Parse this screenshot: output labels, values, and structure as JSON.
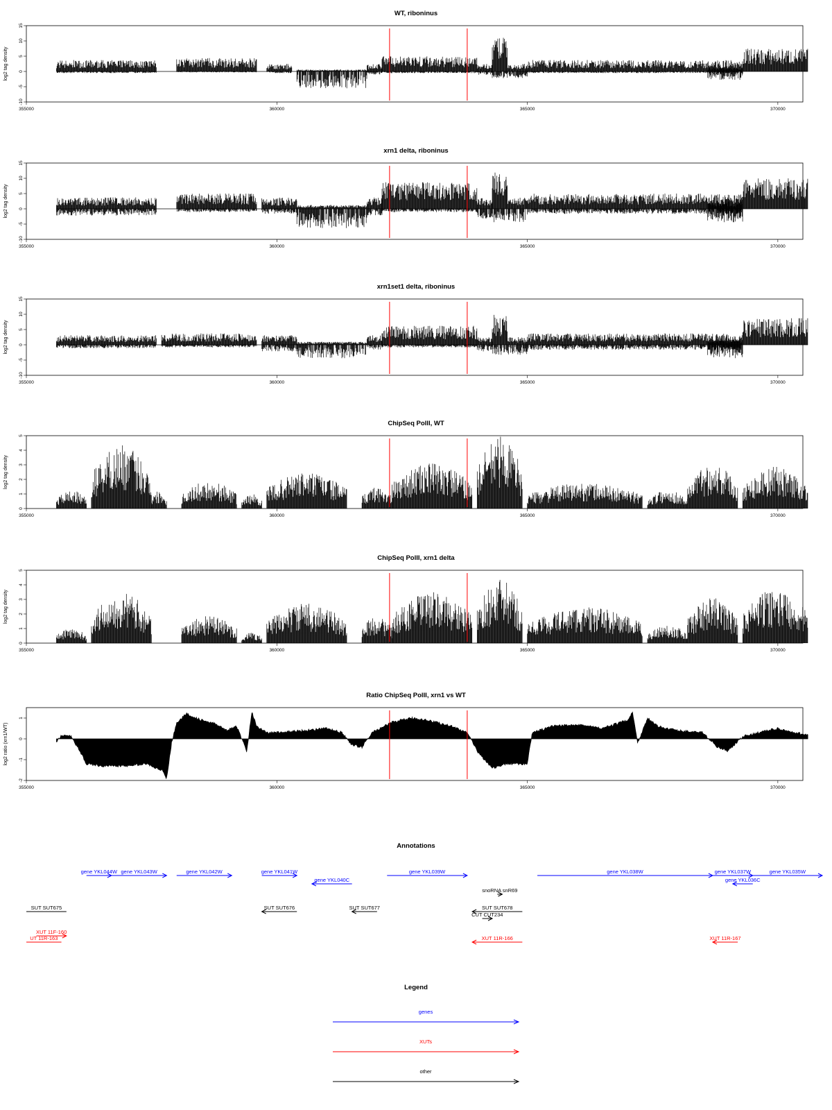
{
  "colors": {
    "gene": "#0000ff",
    "xut": "#ff0000",
    "other": "#000000",
    "marker": "#ff0000",
    "signal": "#000000"
  },
  "chart_data": [
    {
      "type": "area",
      "title": "WT, riboninus",
      "ylabel": "log2 tag density",
      "xlim": [
        355000,
        370500
      ],
      "ylim": [
        -10,
        15
      ],
      "yticks": [
        "15",
        "10",
        "5",
        "0",
        "-5",
        "-10"
      ],
      "xticks": [
        "355000",
        "360000",
        "365000",
        "370000"
      ],
      "markers_x": [
        362250,
        363800
      ],
      "segments": [
        {
          "x": [
            355600,
            357600
          ],
          "up": 3,
          "down": 0.5
        },
        {
          "x": [
            358000,
            359600
          ],
          "up": 3.5,
          "down": 0.3
        },
        {
          "x": [
            359800,
            360300
          ],
          "up": 2,
          "down": 0.5
        },
        {
          "x": [
            360400,
            361800
          ],
          "up": 0.5,
          "down": 5
        },
        {
          "x": [
            361800,
            362100
          ],
          "up": 2,
          "down": 1
        },
        {
          "x": [
            362100,
            364000
          ],
          "up": 4,
          "down": 0.5
        },
        {
          "x": [
            364000,
            364300
          ],
          "up": 2,
          "down": 1
        },
        {
          "x": [
            364300,
            364600
          ],
          "up": 9,
          "down": 2
        },
        {
          "x": [
            364600,
            365000
          ],
          "up": 2,
          "down": 2
        },
        {
          "x": [
            365000,
            369300
          ],
          "up": 3,
          "down": 0.5
        },
        {
          "x": [
            368600,
            369300
          ],
          "up": 1,
          "down": 2.5
        },
        {
          "x": [
            369300,
            370600
          ],
          "up": 6,
          "down": 0
        }
      ]
    },
    {
      "type": "area",
      "title": "xrn1 delta, riboninus",
      "ylabel": "log2 tag density",
      "xlim": [
        355000,
        370500
      ],
      "ylim": [
        -10,
        15
      ],
      "yticks": [
        "15",
        "10",
        "5",
        "0",
        "-5",
        "-10"
      ],
      "xticks": [
        "355000",
        "360000",
        "365000",
        "370000"
      ],
      "markers_x": [
        362250,
        363800
      ],
      "segments": [
        {
          "x": [
            355600,
            357600
          ],
          "up": 3,
          "down": 2
        },
        {
          "x": [
            358000,
            359600
          ],
          "up": 4,
          "down": 1
        },
        {
          "x": [
            359700,
            360400
          ],
          "up": 3,
          "down": 1.5
        },
        {
          "x": [
            360400,
            361800
          ],
          "up": 1,
          "down": 6
        },
        {
          "x": [
            361800,
            362100
          ],
          "up": 3,
          "down": 2
        },
        {
          "x": [
            362100,
            364000
          ],
          "up": 7,
          "down": 1
        },
        {
          "x": [
            364000,
            364300
          ],
          "up": 3,
          "down": 3
        },
        {
          "x": [
            364300,
            364600
          ],
          "up": 10,
          "down": 4
        },
        {
          "x": [
            364600,
            365000
          ],
          "up": 3,
          "down": 4
        },
        {
          "x": [
            365000,
            369300
          ],
          "up": 4,
          "down": 1.5
        },
        {
          "x": [
            368600,
            369300
          ],
          "up": 2,
          "down": 4
        },
        {
          "x": [
            369300,
            370600
          ],
          "up": 8,
          "down": 0
        }
      ]
    },
    {
      "type": "area",
      "title": "xrn1set1 delta, riboninus",
      "ylabel": "log2 tag density",
      "xlim": [
        355000,
        370500
      ],
      "ylim": [
        -10,
        15
      ],
      "yticks": [
        "15",
        "10",
        "5",
        "0",
        "-5",
        "-10"
      ],
      "xticks": [
        "355000",
        "360000",
        "365000",
        "370000"
      ],
      "markers_x": [
        362250,
        363800
      ],
      "segments": [
        {
          "x": [
            355600,
            357600
          ],
          "up": 2.5,
          "down": 1
        },
        {
          "x": [
            357700,
            359600
          ],
          "up": 3,
          "down": 0.8
        },
        {
          "x": [
            359700,
            360400
          ],
          "up": 2.5,
          "down": 2
        },
        {
          "x": [
            360400,
            361800
          ],
          "up": 0.8,
          "down": 4
        },
        {
          "x": [
            361800,
            362100
          ],
          "up": 2.5,
          "down": 1.5
        },
        {
          "x": [
            362100,
            364000
          ],
          "up": 5,
          "down": 0.8
        },
        {
          "x": [
            364000,
            364300
          ],
          "up": 2,
          "down": 2
        },
        {
          "x": [
            364300,
            364600
          ],
          "up": 8,
          "down": 3
        },
        {
          "x": [
            364600,
            365000
          ],
          "up": 2,
          "down": 3
        },
        {
          "x": [
            365000,
            369300
          ],
          "up": 3,
          "down": 1.5
        },
        {
          "x": [
            368600,
            369300
          ],
          "up": 1.5,
          "down": 4
        },
        {
          "x": [
            369300,
            370600
          ],
          "up": 7,
          "down": 0
        }
      ]
    },
    {
      "type": "area",
      "title": "ChipSeq PolII, WT",
      "ylabel": "log2 tag density",
      "xlim": [
        355000,
        370500
      ],
      "ylim": [
        0,
        5
      ],
      "yticks": [
        "5",
        "4",
        "3",
        "2",
        "1",
        "0"
      ],
      "xticks": [
        "355000",
        "360000",
        "365000",
        "370000"
      ],
      "markers_x": [
        362250,
        363800
      ],
      "segments": [
        {
          "x": [
            355600,
            356200
          ],
          "up": 1,
          "down": 0
        },
        {
          "x": [
            356300,
            357500
          ],
          "up": 3.5,
          "down": 0
        },
        {
          "x": [
            357500,
            357800
          ],
          "up": 1,
          "down": 0
        },
        {
          "x": [
            358100,
            359200
          ],
          "up": 1.5,
          "down": 0
        },
        {
          "x": [
            359300,
            359700
          ],
          "up": 0.8,
          "down": 0
        },
        {
          "x": [
            359800,
            361400
          ],
          "up": 2,
          "down": 0
        },
        {
          "x": [
            361700,
            362300
          ],
          "up": 1.2,
          "down": 0
        },
        {
          "x": [
            362300,
            363900
          ],
          "up": 2.5,
          "down": 0
        },
        {
          "x": [
            364000,
            364900
          ],
          "up": 4,
          "down": 0
        },
        {
          "x": [
            365000,
            367300
          ],
          "up": 1.4,
          "down": 0
        },
        {
          "x": [
            367400,
            368200
          ],
          "up": 1,
          "down": 0
        },
        {
          "x": [
            368200,
            369200
          ],
          "up": 2.5,
          "down": 0
        },
        {
          "x": [
            369300,
            370600
          ],
          "up": 2.3,
          "down": 0
        }
      ]
    },
    {
      "type": "area",
      "title": "ChipSeq PolII, xrn1 delta",
      "ylabel": "log2 tag density",
      "xlim": [
        355000,
        370500
      ],
      "ylim": [
        0,
        5
      ],
      "yticks": [
        "5",
        "4",
        "3",
        "2",
        "1",
        "0"
      ],
      "xticks": [
        "355000",
        "360000",
        "365000",
        "370000"
      ],
      "markers_x": [
        362250,
        363800
      ],
      "segments": [
        {
          "x": [
            355600,
            356200
          ],
          "up": 0.8,
          "down": 0
        },
        {
          "x": [
            356300,
            357500
          ],
          "up": 2.8,
          "down": 0
        },
        {
          "x": [
            358100,
            359200
          ],
          "up": 1.5,
          "down": 0
        },
        {
          "x": [
            359300,
            359700
          ],
          "up": 0.6,
          "down": 0
        },
        {
          "x": [
            359800,
            361400
          ],
          "up": 2.2,
          "down": 0
        },
        {
          "x": [
            361700,
            362300
          ],
          "up": 1.5,
          "down": 0
        },
        {
          "x": [
            362300,
            363900
          ],
          "up": 2.8,
          "down": 0
        },
        {
          "x": [
            364000,
            364900
          ],
          "up": 3.5,
          "down": 0
        },
        {
          "x": [
            365000,
            367300
          ],
          "up": 2,
          "down": 0
        },
        {
          "x": [
            367400,
            368200
          ],
          "up": 1,
          "down": 0
        },
        {
          "x": [
            368200,
            369200
          ],
          "up": 2.5,
          "down": 0
        },
        {
          "x": [
            369300,
            370600
          ],
          "up": 3,
          "down": 0
        }
      ]
    },
    {
      "type": "area",
      "title": "Ratio ChipSeq PolII, xrn1 vs WT",
      "ylabel": "log2 ratio (xrn1/WT)",
      "xlim": [
        355000,
        370500
      ],
      "ylim": [
        -2,
        1.5
      ],
      "yticks": [
        "1",
        "0",
        "-1",
        "-2"
      ],
      "xticks": [
        "355000",
        "360000",
        "365000",
        "370000"
      ],
      "markers_x": [
        362250,
        363800
      ],
      "curve": [
        [
          355600,
          -0.2
        ],
        [
          355700,
          0.2
        ],
        [
          355900,
          0.1
        ],
        [
          356000,
          -0.3
        ],
        [
          356200,
          -1.2
        ],
        [
          356500,
          -1.3
        ],
        [
          357000,
          -1.3
        ],
        [
          357400,
          -1.2
        ],
        [
          357700,
          -1.5
        ],
        [
          357800,
          -1.9
        ],
        [
          357900,
          -0.2
        ],
        [
          358000,
          0.8
        ],
        [
          358200,
          1.2
        ],
        [
          358500,
          0.9
        ],
        [
          358800,
          0.7
        ],
        [
          359000,
          0.4
        ],
        [
          359200,
          0.6
        ],
        [
          359400,
          -0.6
        ],
        [
          359500,
          1.3
        ],
        [
          359600,
          0.6
        ],
        [
          359800,
          0.3
        ],
        [
          360000,
          0.3
        ],
        [
          360500,
          0.4
        ],
        [
          361000,
          0.5
        ],
        [
          361300,
          0.3
        ],
        [
          361500,
          -0.3
        ],
        [
          361700,
          -0.4
        ],
        [
          361900,
          0.3
        ],
        [
          362300,
          0.8
        ],
        [
          362700,
          1
        ],
        [
          363000,
          0.9
        ],
        [
          363500,
          0.6
        ],
        [
          363800,
          0.3
        ],
        [
          364000,
          -0.6
        ],
        [
          364300,
          -1.4
        ],
        [
          364600,
          -1.2
        ],
        [
          365000,
          -1.2
        ],
        [
          365100,
          0.3
        ],
        [
          365500,
          0.6
        ],
        [
          366000,
          0.7
        ],
        [
          366500,
          0.5
        ],
        [
          367000,
          0.9
        ],
        [
          367100,
          1.3
        ],
        [
          367200,
          -0.2
        ],
        [
          367400,
          1
        ],
        [
          367600,
          0.6
        ],
        [
          368000,
          0.4
        ],
        [
          368500,
          0.3
        ],
        [
          368800,
          -0.4
        ],
        [
          369000,
          -0.6
        ],
        [
          369300,
          0.1
        ],
        [
          369600,
          0.3
        ],
        [
          370000,
          0.5
        ],
        [
          370300,
          0.3
        ],
        [
          370600,
          0.2
        ]
      ]
    }
  ],
  "annotations": {
    "title": "Annotations",
    "xlim": [
      355000,
      370500
    ],
    "items": [
      {
        "label": "gene YKL044W",
        "type": "gene",
        "x1": 356200,
        "x2": 356700,
        "dir": "right",
        "row": 0
      },
      {
        "label": "gene YKL043W",
        "type": "gene",
        "x1": 356700,
        "x2": 357800,
        "dir": "right",
        "row": 0
      },
      {
        "label": "gene YKL042W",
        "type": "gene",
        "x1": 358000,
        "x2": 359100,
        "dir": "right",
        "row": 0
      },
      {
        "label": "gene YKL041W",
        "type": "gene",
        "x1": 359700,
        "x2": 360400,
        "dir": "right",
        "row": 0
      },
      {
        "label": "gene YKL040C",
        "type": "gene",
        "x1": 360700,
        "x2": 361500,
        "dir": "left",
        "row": 1
      },
      {
        "label": "gene YKL039W",
        "type": "gene",
        "x1": 362200,
        "x2": 363800,
        "dir": "right",
        "row": 0
      },
      {
        "label": "gene YKL038W",
        "type": "gene",
        "x1": 365200,
        "x2": 368700,
        "dir": "right",
        "row": 0
      },
      {
        "label": "gene YKL037W",
        "type": "gene",
        "x1": 368700,
        "x2": 369500,
        "dir": "right",
        "row": 0
      },
      {
        "label": "gene YKL036C",
        "type": "gene",
        "x1": 369100,
        "x2": 369500,
        "dir": "left",
        "row": 1
      },
      {
        "label": "gene YKL035W",
        "type": "gene",
        "x1": 369500,
        "x2": 371200,
        "dir": "right",
        "row": 0
      },
      {
        "label": "snoRNA snR69",
        "type": "other",
        "x1": 364400,
        "x2": 364500,
        "dir": "right",
        "row": 2
      },
      {
        "label": "SUT SUT675",
        "type": "other",
        "x1": 354500,
        "x2": 355800,
        "dir": "none",
        "row": 3
      },
      {
        "label": "SUT SUT676",
        "type": "other",
        "x1": 359700,
        "x2": 360400,
        "dir": "left",
        "row": 3
      },
      {
        "label": "SUT SUT677",
        "type": "other",
        "x1": 361500,
        "x2": 362000,
        "dir": "left",
        "row": 3
      },
      {
        "label": "SUT SUT678",
        "type": "other",
        "x1": 363900,
        "x2": 364900,
        "dir": "left",
        "row": 3
      },
      {
        "label": "CUT CUT234",
        "type": "other",
        "x1": 364100,
        "x2": 364300,
        "dir": "right",
        "row": 4
      },
      {
        "label": "XUT 11F-160",
        "type": "xut",
        "x1": 355200,
        "x2": 355800,
        "dir": "right",
        "row": 5
      },
      {
        "label": "UT 11R-163",
        "type": "xut",
        "x1": 354500,
        "x2": 355700,
        "dir": "none",
        "row": 6
      },
      {
        "label": "XUT 11R-166",
        "type": "xut",
        "x1": 363900,
        "x2": 364900,
        "dir": "left",
        "row": 6
      },
      {
        "label": "XUT 11R-167",
        "type": "xut",
        "x1": 368700,
        "x2": 369200,
        "dir": "left",
        "row": 6
      }
    ]
  },
  "legend": {
    "title": "Legend",
    "entries": [
      {
        "label": "genes",
        "type": "gene"
      },
      {
        "label": "XUTs",
        "type": "xut"
      },
      {
        "label": "other",
        "type": "other"
      }
    ]
  }
}
